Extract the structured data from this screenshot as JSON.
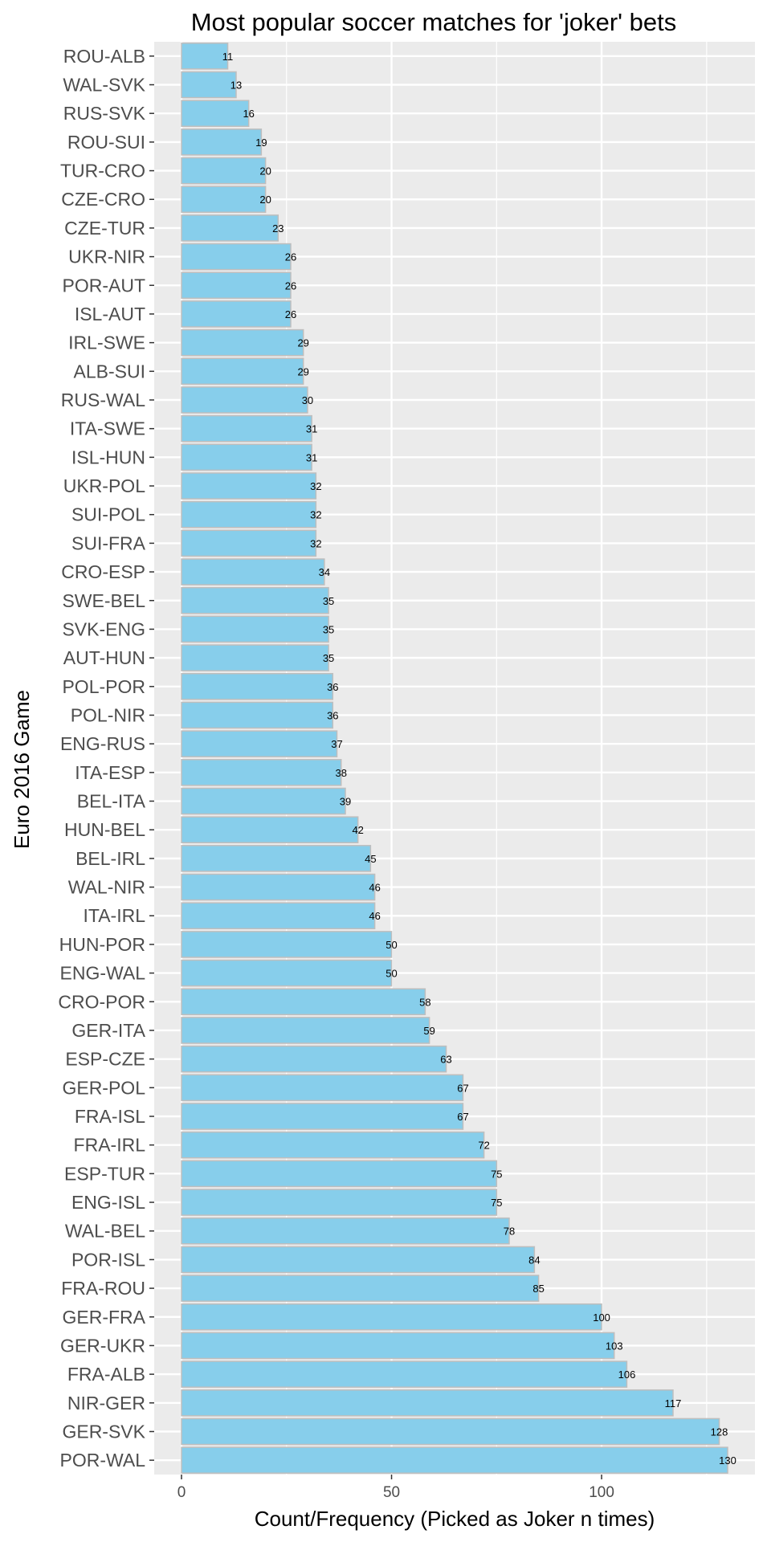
{
  "chart_data": {
    "type": "bar",
    "orientation": "horizontal",
    "title": "Most popular soccer matches for 'joker' bets",
    "xlabel": "Count/Frequency (Picked as Joker n times)",
    "ylabel": "Euro 2016 Game",
    "xlim": [
      -6.5,
      136.5
    ],
    "xticks": [
      0,
      50,
      100
    ],
    "grid": true,
    "bar_color": "#87CEEB",
    "bar_edge_color": "#BEBEBE",
    "panel_color": "#EBEBEB",
    "categories": [
      "ROU-ALB",
      "WAL-SVK",
      "RUS-SVK",
      "ROU-SUI",
      "TUR-CRO",
      "CZE-CRO",
      "CZE-TUR",
      "UKR-NIR",
      "POR-AUT",
      "ISL-AUT",
      "IRL-SWE",
      "ALB-SUI",
      "RUS-WAL",
      "ITA-SWE",
      "ISL-HUN",
      "UKR-POL",
      "SUI-POL",
      "SUI-FRA",
      "CRO-ESP",
      "SWE-BEL",
      "SVK-ENG",
      "AUT-HUN",
      "POL-POR",
      "POL-NIR",
      "ENG-RUS",
      "ITA-ESP",
      "BEL-ITA",
      "HUN-BEL",
      "BEL-IRL",
      "WAL-NIR",
      "ITA-IRL",
      "HUN-POR",
      "ENG-WAL",
      "CRO-POR",
      "GER-ITA",
      "ESP-CZE",
      "GER-POL",
      "FRA-ISL",
      "FRA-IRL",
      "ESP-TUR",
      "ENG-ISL",
      "WAL-BEL",
      "POR-ISL",
      "FRA-ROU",
      "GER-FRA",
      "GER-UKR",
      "FRA-ALB",
      "NIR-GER",
      "GER-SVK",
      "POR-WAL"
    ],
    "values": [
      11,
      13,
      16,
      19,
      20,
      20,
      23,
      26,
      26,
      26,
      29,
      29,
      30,
      31,
      31,
      32,
      32,
      32,
      34,
      35,
      35,
      35,
      36,
      36,
      37,
      38,
      39,
      42,
      45,
      46,
      46,
      50,
      50,
      58,
      59,
      63,
      67,
      67,
      72,
      75,
      75,
      78,
      84,
      85,
      100,
      103,
      106,
      117,
      128,
      130
    ]
  }
}
